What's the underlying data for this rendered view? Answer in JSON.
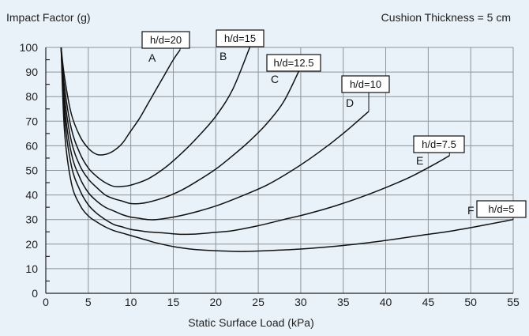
{
  "chart_data": {
    "type": "line",
    "title": "",
    "ylabel": "Impact Factor (g)",
    "xlabel": "Static Surface Load (kPa)",
    "annotation": "Cushion Thickness = 5 cm",
    "xlim": [
      0,
      55
    ],
    "ylim": [
      0,
      100
    ],
    "xticks": [
      0,
      5,
      10,
      15,
      20,
      25,
      30,
      35,
      40,
      45,
      50,
      55
    ],
    "yticks": [
      0,
      10,
      20,
      30,
      40,
      50,
      60,
      70,
      80,
      90,
      100
    ],
    "grid": true,
    "series": [
      {
        "name": "h/d=20",
        "letter": "A",
        "x": [
          1.8,
          2.2,
          3,
          4,
          5,
          6,
          7,
          8,
          9,
          10,
          11,
          12,
          13,
          14,
          15,
          15.8
        ],
        "y": [
          100,
          88,
          73,
          64,
          59,
          56.5,
          56.5,
          58,
          61,
          66,
          71,
          77,
          83,
          89,
          95,
          99
        ]
      },
      {
        "name": "h/d=15",
        "letter": "B",
        "x": [
          1.8,
          2.2,
          3,
          4,
          5,
          6,
          7,
          8,
          9,
          10,
          12,
          14,
          16,
          18,
          20,
          22,
          24
        ],
        "y": [
          100,
          84,
          67,
          57,
          51,
          47.5,
          45,
          43.5,
          43.5,
          44,
          46.5,
          51,
          57,
          64,
          72,
          83,
          100
        ]
      },
      {
        "name": "h/d=12.5",
        "letter": "C",
        "x": [
          1.8,
          2.2,
          3,
          4,
          5,
          6,
          7,
          8,
          9,
          10,
          11,
          12,
          14,
          16,
          18,
          20,
          22,
          24,
          26,
          28,
          30
        ],
        "y": [
          100,
          80,
          62,
          52,
          46.5,
          43,
          40,
          38.5,
          37.5,
          36.5,
          36.5,
          37,
          39,
          42,
          46,
          50.5,
          56,
          62,
          69,
          78,
          92
        ]
      },
      {
        "name": "h/d=10",
        "letter": "D",
        "x": [
          1.8,
          2.2,
          3,
          4,
          5,
          6,
          7,
          8,
          9,
          10,
          11,
          12,
          13,
          15,
          17,
          20,
          23,
          26,
          29,
          32,
          35,
          38
        ],
        "y": [
          100,
          76,
          57,
          47,
          41,
          37.5,
          35,
          33.5,
          32,
          31,
          30.5,
          30,
          30,
          31,
          32.5,
          35.5,
          39.5,
          44,
          50,
          57,
          65,
          74
        ]
      },
      {
        "name": "h/d=7.5",
        "letter": "E",
        "x": [
          1.8,
          2.2,
          3,
          4,
          5,
          6,
          7,
          8,
          9,
          10,
          11,
          12,
          14,
          16,
          18,
          20,
          22,
          25,
          28,
          31,
          34,
          37,
          40,
          43,
          46,
          47.5
        ],
        "y": [
          100,
          72,
          52,
          42,
          36,
          32.5,
          30,
          28,
          27,
          26,
          25.5,
          25,
          24.5,
          24,
          24.2,
          24.8,
          25.5,
          27.5,
          30,
          32.5,
          35.5,
          39,
          43,
          47.5,
          53,
          56
        ]
      },
      {
        "name": "h/d=5",
        "letter": "F",
        "x": [
          1.8,
          2.2,
          3,
          4,
          5,
          6,
          7,
          8,
          9,
          10,
          11,
          12,
          13,
          15,
          17,
          19,
          21,
          23,
          25,
          27,
          30,
          33,
          36,
          40,
          44,
          48,
          52,
          55
        ],
        "y": [
          100,
          66,
          45,
          36,
          31.5,
          29,
          27,
          25.5,
          24.5,
          23.5,
          22.5,
          21.5,
          20.5,
          19,
          18,
          17.5,
          17.2,
          17,
          17.2,
          17.5,
          18,
          18.8,
          19.8,
          21.5,
          23.5,
          25.5,
          28,
          30
        ]
      }
    ]
  }
}
